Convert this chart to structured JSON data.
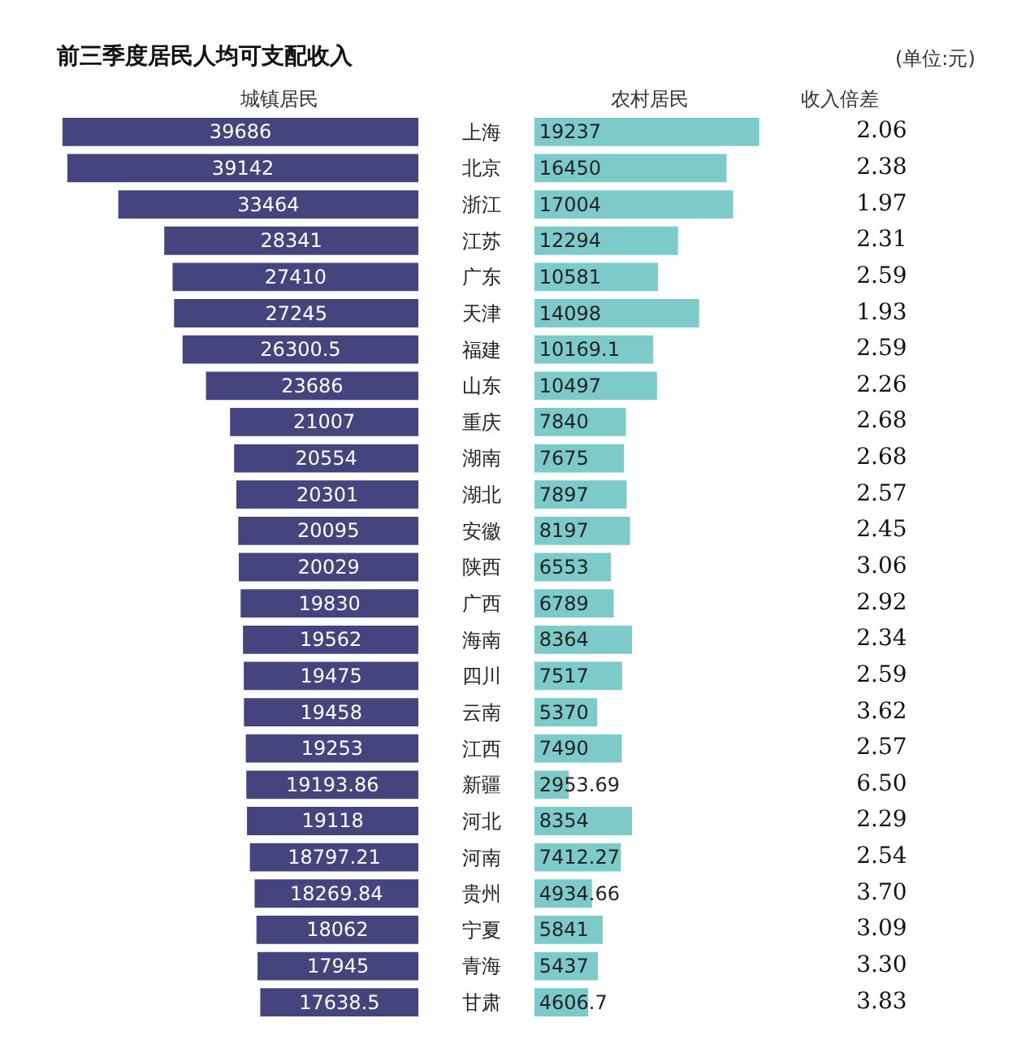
{
  "chart_data": [
    {
      "type": "bar",
      "orientation": "horizontal",
      "title": "前三季度居民人均可支配收入",
      "data_labels": true,
      "tick_labels": "y",
      "categories": [
        "上海",
        "北京",
        "浙江",
        "江苏",
        "广东",
        "天津",
        "福建",
        "山东",
        "重庆",
        "湖南",
        "湖北",
        "安徽",
        "陕西",
        "广西",
        "海南",
        "四川",
        "云南",
        "江西",
        "新疆",
        "河北",
        "河南",
        "贵州",
        "宁夏",
        "青海",
        "甘肃"
      ],
      "series": [
        {
          "name": "城镇居民",
          "color": "#45447f",
          "values": [
            39686,
            39142,
            33464,
            28341,
            27410,
            27245,
            26300.5,
            23686,
            21007,
            20554,
            20301,
            20095,
            20029,
            19830,
            19562,
            19475,
            19458,
            19253,
            19193.86,
            19118,
            18797.21,
            18269.84,
            18062,
            17945,
            17638.5
          ]
        }
      ]
    },
    {
      "type": "bar",
      "orientation": "horizontal",
      "data_labels": true,
      "tick_labels": false,
      "categories": [
        "上海",
        "北京",
        "浙江",
        "江苏",
        "广东",
        "天津",
        "福建",
        "山东",
        "重庆",
        "湖南",
        "湖北",
        "安徽",
        "陕西",
        "广西",
        "海南",
        "四川",
        "云南",
        "江西",
        "新疆",
        "河北",
        "河南",
        "贵州",
        "宁夏",
        "青海",
        "甘肃"
      ],
      "series": [
        {
          "name": "农村居民",
          "color": "#7ccaca",
          "values": [
            19237,
            16450,
            17004,
            12294,
            10581,
            14098,
            10169.1,
            10497,
            7840,
            7675,
            7897,
            8197,
            6553,
            6789,
            8364,
            7517,
            5370,
            7490,
            2953.69,
            8354,
            7412.27,
            4934.66,
            5841,
            5437,
            4606.7
          ]
        }
      ]
    },
    {
      "type": "other",
      "subtitle": "(单位:元)",
      "title": "收入倍差",
      "annotations": [
        "2.06",
        "2.38",
        "1.97",
        "2.31",
        "2.59",
        "1.93",
        "2.59",
        "2.26",
        "2.68",
        "2.68",
        "2.57",
        "2.45",
        "3.06",
        "2.92",
        "2.34",
        "2.59",
        "3.62",
        "2.57",
        "6.50",
        "2.29",
        "2.54",
        "3.70",
        "3.09",
        "3.30",
        "3.83"
      ]
    }
  ]
}
